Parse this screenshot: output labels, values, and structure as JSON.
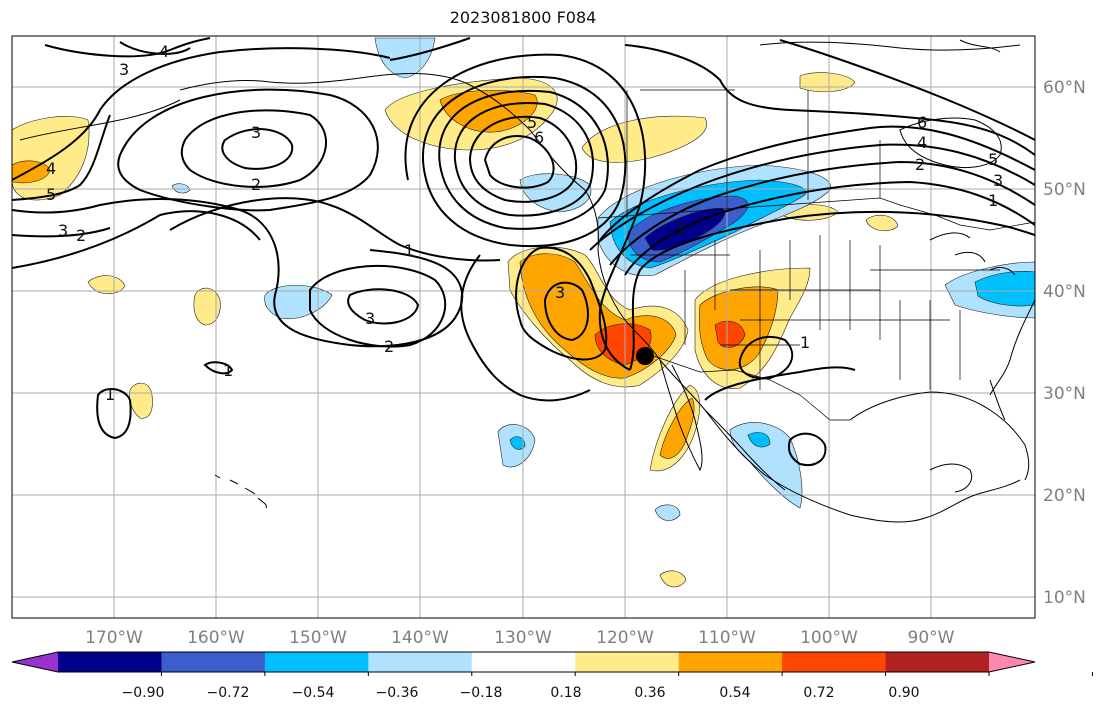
{
  "title": "2023081800 F084",
  "latitude_labels": [
    "60°N",
    "50°N",
    "40°N",
    "30°N",
    "20°N",
    "10°N"
  ],
  "longitude_labels": [
    "170°W",
    "160°W",
    "150°W",
    "140°W",
    "130°W",
    "120°W",
    "110°W",
    "100°W",
    "90°W"
  ],
  "colorbar": {
    "colors": [
      "#9932cc",
      "#00008b",
      "#3a5fcd",
      "#00bfff",
      "#b0e2ff",
      "#ffffff",
      "#ffeb8a",
      "#ffa500",
      "#ff4500",
      "#b22222",
      "#ff88b0"
    ],
    "tick_labels": [
      "−0.90",
      "−0.72",
      "−0.54",
      "−0.36",
      "−0.18",
      "0.18",
      "0.36",
      "0.54",
      "0.72",
      "0.90"
    ]
  },
  "colors": {
    "contour": "#000000",
    "grid": "#aaaaaa",
    "coastline": "#000000"
  },
  "contour_labels": [
    "4",
    "3",
    "3",
    "2",
    "4",
    "5",
    "3",
    "2",
    "5",
    "6",
    "1",
    "3",
    "2",
    "1",
    "3",
    "1",
    "6",
    "5",
    "4",
    "3",
    "2",
    "1",
    "1",
    "1"
  ],
  "marker": "station-dot"
}
